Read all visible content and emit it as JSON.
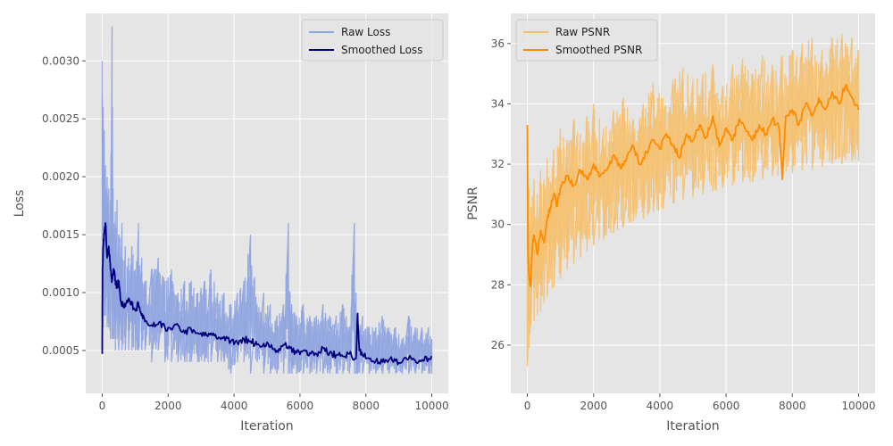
{
  "chart_data": [
    {
      "type": "line",
      "title": "",
      "xlabel": "Iteration",
      "ylabel": "Loss",
      "xlim": [
        -500,
        10500
      ],
      "ylim": [
        0.00013,
        0.00341
      ],
      "xticks": [
        0,
        2000,
        4000,
        6000,
        8000,
        10000
      ],
      "xtick_labels": [
        "0",
        "2000",
        "4000",
        "6000",
        "8000",
        "10000"
      ],
      "yticks": [
        0.0005,
        0.001,
        0.0015,
        0.002,
        0.0025,
        0.003
      ],
      "ytick_labels": [
        "0.0005",
        "0.0010",
        "0.0015",
        "0.0020",
        "0.0025",
        "0.0030"
      ],
      "grid": true,
      "legend": "top-right",
      "series": [
        {
          "name": "Raw Loss",
          "color": "#8fa4e0",
          "x": [
            0,
            30,
            60,
            100,
            150,
            200,
            250,
            300,
            330,
            360,
            400,
            450,
            500,
            600,
            700,
            800,
            900,
            1000,
            1100,
            1200,
            1300,
            1500,
            1700,
            1900,
            2100,
            2300,
            2500,
            2700,
            2900,
            3100,
            3300,
            3500,
            3700,
            3900,
            4100,
            4300,
            4500,
            4700,
            4900,
            5100,
            5300,
            5500,
            5650,
            5700,
            5750,
            5900,
            6100,
            6300,
            6500,
            6700,
            6900,
            7100,
            7300,
            7500,
            7650,
            7700,
            7750,
            7900,
            8100,
            8300,
            8500,
            8700,
            8900,
            9100,
            9300,
            9500,
            9700,
            9900,
            10000
          ],
          "upper": [
            0.003,
            0.0026,
            0.0024,
            0.0021,
            0.002,
            0.0019,
            0.0018,
            0.0033,
            0.0019,
            0.0016,
            0.0017,
            0.0018,
            0.0015,
            0.0016,
            0.0014,
            0.0013,
            0.0014,
            0.0012,
            0.0016,
            0.0013,
            0.0011,
            0.0012,
            0.0013,
            0.0011,
            0.0012,
            0.001,
            0.0011,
            0.0011,
            0.001,
            0.0011,
            0.0012,
            0.001,
            0.001,
            0.0009,
            0.001,
            0.0011,
            0.0015,
            0.0009,
            0.001,
            0.0009,
            0.0008,
            0.0009,
            0.0016,
            0.001,
            0.0009,
            0.0008,
            0.0009,
            0.0008,
            0.0008,
            0.0009,
            0.0008,
            0.0008,
            0.0009,
            0.0007,
            0.0016,
            0.001,
            0.0008,
            0.0008,
            0.0007,
            0.0007,
            0.0008,
            0.0007,
            0.0007,
            0.0006,
            0.0008,
            0.0007,
            0.0007,
            0.0007,
            0.0006
          ],
          "lower": [
            0.0005,
            0.0007,
            0.0008,
            0.0008,
            0.0007,
            0.0007,
            0.0006,
            0.0006,
            0.0006,
            0.0006,
            0.0005,
            0.0006,
            0.0005,
            0.0005,
            0.0005,
            0.0005,
            0.0005,
            0.0005,
            0.0005,
            0.0005,
            0.0005,
            0.0004,
            0.0005,
            0.0004,
            0.0004,
            0.0004,
            0.0004,
            0.0004,
            0.0004,
            0.0004,
            0.0004,
            0.0004,
            0.0004,
            0.0003,
            0.0004,
            0.0004,
            0.0003,
            0.0004,
            0.0003,
            0.0003,
            0.0003,
            0.0003,
            0.0003,
            0.0003,
            0.0003,
            0.0003,
            0.0003,
            0.0003,
            0.0003,
            0.0003,
            0.0003,
            0.0003,
            0.0003,
            0.0003,
            0.0003,
            0.0003,
            0.0003,
            0.0003,
            0.0003,
            0.0003,
            0.0003,
            0.0003,
            0.0003,
            0.0003,
            0.0003,
            0.0003,
            0.0003,
            0.0003,
            0.0003
          ]
        },
        {
          "name": "Smoothed Loss",
          "color": "#00007f",
          "x": [
            0,
            10,
            30,
            60,
            100,
            150,
            200,
            250,
            300,
            350,
            400,
            450,
            500,
            550,
            600,
            700,
            800,
            900,
            1000,
            1100,
            1200,
            1300,
            1500,
            1700,
            1900,
            2100,
            2300,
            2500,
            2700,
            2900,
            3100,
            3300,
            3500,
            3700,
            3900,
            4100,
            4300,
            4500,
            4700,
            4900,
            5100,
            5300,
            5500,
            5700,
            5900,
            6100,
            6300,
            6500,
            6700,
            6900,
            7100,
            7300,
            7500,
            7700,
            7750,
            7800,
            7900,
            8100,
            8300,
            8500,
            8700,
            8900,
            9100,
            9300,
            9500,
            9700,
            9900,
            10000
          ],
          "y": [
            0.00047,
            0.0012,
            0.0014,
            0.0015,
            0.0016,
            0.0013,
            0.0014,
            0.0012,
            0.0011,
            0.0012,
            0.0011,
            0.00105,
            0.0011,
            0.00095,
            0.0009,
            0.00088,
            0.00095,
            0.0009,
            0.00085,
            0.0009,
            0.0008,
            0.00075,
            0.00072,
            0.00073,
            0.0007,
            0.00068,
            0.00072,
            0.00065,
            0.00068,
            0.00065,
            0.00063,
            0.00065,
            0.0006,
            0.00062,
            0.00058,
            0.00057,
            0.0006,
            0.00058,
            0.00055,
            0.00056,
            0.00053,
            0.0005,
            0.00055,
            0.00052,
            0.00048,
            0.0005,
            0.00048,
            0.00047,
            0.00052,
            0.00048,
            0.00046,
            0.00045,
            0.00047,
            0.00043,
            0.00082,
            0.0005,
            0.00046,
            0.00043,
            0.00041,
            0.0004,
            0.00042,
            0.00041,
            0.0004,
            0.00043,
            0.00041,
            0.00042,
            0.00043,
            0.00045
          ]
        }
      ]
    },
    {
      "type": "line",
      "title": "",
      "xlabel": "Iteration",
      "ylabel": "PSNR",
      "xlim": [
        -500,
        10500
      ],
      "ylim": [
        24.4,
        37.0
      ],
      "xticks": [
        0,
        2000,
        4000,
        6000,
        8000,
        10000
      ],
      "xtick_labels": [
        "0",
        "2000",
        "4000",
        "6000",
        "8000",
        "10000"
      ],
      "yticks": [
        26,
        28,
        30,
        32,
        34,
        36
      ],
      "ytick_labels": [
        "26",
        "28",
        "30",
        "32",
        "34",
        "36"
      ],
      "grid": true,
      "legend": "top-left",
      "series": [
        {
          "name": "Raw PSNR",
          "color": "#f5c06e",
          "x": [
            0,
            50,
            100,
            200,
            300,
            400,
            500,
            600,
            800,
            1000,
            1200,
            1400,
            1600,
            1800,
            2000,
            2300,
            2600,
            2900,
            3200,
            3500,
            3800,
            4100,
            4400,
            4700,
            5000,
            5300,
            5600,
            5900,
            6200,
            6500,
            6800,
            7100,
            7400,
            7700,
            8000,
            8300,
            8600,
            8900,
            9200,
            9500,
            9800,
            10000
          ],
          "upper": [
            33.2,
            31.2,
            30.6,
            31.5,
            31.0,
            31.8,
            31.5,
            32.2,
            32.5,
            33.2,
            32.8,
            33.5,
            33.0,
            33.6,
            34.0,
            33.2,
            33.8,
            34.2,
            33.5,
            34.0,
            34.7,
            34.2,
            34.8,
            35.2,
            34.8,
            35.0,
            35.3,
            34.6,
            35.3,
            35.5,
            35.0,
            35.6,
            35.3,
            35.6,
            35.8,
            36.0,
            36.2,
            35.8,
            36.2,
            36.3,
            36.2,
            35.8
          ],
          "lower": [
            25.3,
            25.9,
            26.6,
            26.8,
            27.0,
            27.1,
            27.4,
            27.6,
            27.9,
            28.2,
            28.5,
            28.7,
            28.9,
            29.1,
            29.3,
            29.5,
            29.7,
            29.9,
            30.1,
            30.2,
            30.4,
            30.5,
            30.7,
            30.8,
            30.9,
            31.0,
            31.1,
            31.2,
            31.3,
            31.4,
            31.4,
            31.5,
            31.6,
            31.6,
            31.7,
            31.8,
            31.8,
            31.9,
            32.0,
            32.0,
            32.1,
            32.1
          ]
        },
        {
          "name": "Smoothed PSNR",
          "color": "#ff8c00",
          "x": [
            0,
            20,
            50,
            100,
            150,
            200,
            300,
            400,
            500,
            600,
            700,
            800,
            900,
            1000,
            1200,
            1400,
            1600,
            1800,
            2000,
            2200,
            2400,
            2600,
            2800,
            3000,
            3200,
            3400,
            3600,
            3800,
            4000,
            4200,
            4400,
            4600,
            4800,
            5000,
            5200,
            5400,
            5600,
            5800,
            6000,
            6200,
            6400,
            6600,
            6800,
            7000,
            7200,
            7400,
            7600,
            7700,
            7800,
            8000,
            8200,
            8400,
            8600,
            8800,
            9000,
            9200,
            9400,
            9600,
            9800,
            10000
          ],
          "y": [
            33.3,
            29.0,
            28.3,
            28.0,
            29.3,
            29.6,
            29.0,
            29.8,
            29.4,
            30.2,
            30.6,
            31.0,
            30.6,
            31.2,
            31.6,
            31.3,
            31.8,
            31.5,
            32.0,
            31.6,
            31.8,
            32.3,
            31.9,
            32.2,
            32.6,
            32.0,
            32.4,
            32.8,
            32.5,
            33.0,
            32.6,
            32.2,
            33.0,
            32.8,
            33.3,
            32.9,
            33.6,
            32.6,
            33.2,
            32.8,
            33.5,
            33.1,
            32.8,
            33.3,
            33.0,
            33.5,
            33.2,
            31.5,
            33.6,
            33.8,
            33.3,
            34.0,
            33.6,
            34.2,
            33.8,
            34.4,
            34.0,
            34.6,
            34.2,
            33.8
          ]
        }
      ]
    }
  ]
}
